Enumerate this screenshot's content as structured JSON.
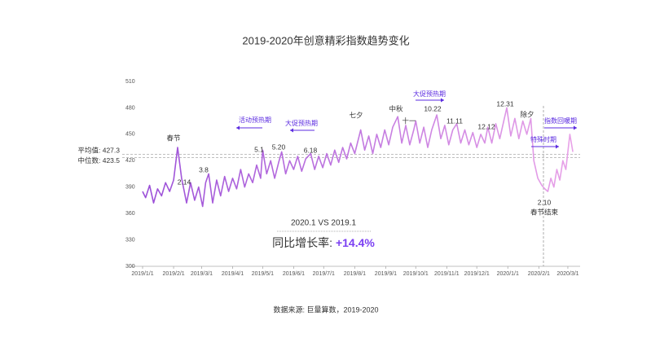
{
  "chart_data": {
    "type": "line",
    "title": "2019-2020年创意精彩指数趋势变化",
    "source": "数据来源: 巨量算数，2019-2020",
    "x": [
      "2019/1/1",
      "2019/1/4",
      "2019/1/8",
      "2019/1/12",
      "2019/1/16",
      "2019/1/20",
      "2019/1/24",
      "2019/1/28",
      "2019/2/1",
      "2019/2/5",
      "2019/2/9",
      "2019/2/14",
      "2019/2/18",
      "2019/2/22",
      "2019/2/26",
      "2019/3/2",
      "2019/3/5",
      "2019/3/8",
      "2019/3/12",
      "2019/3/16",
      "2019/3/20",
      "2019/3/24",
      "2019/3/28",
      "2019/4/1",
      "2019/4/5",
      "2019/4/9",
      "2019/4/13",
      "2019/4/17",
      "2019/4/21",
      "2019/4/25",
      "2019/4/29",
      "2019/5/1",
      "2019/5/5",
      "2019/5/9",
      "2019/5/13",
      "2019/5/17",
      "2019/5/20",
      "2019/5/24",
      "2019/5/28",
      "2019/6/1",
      "2019/6/5",
      "2019/6/9",
      "2019/6/13",
      "2019/6/18",
      "2019/6/22",
      "2019/6/26",
      "2019/6/30",
      "2019/7/4",
      "2019/7/8",
      "2019/7/12",
      "2019/7/16",
      "2019/7/20",
      "2019/7/24",
      "2019/7/28",
      "2019/8/1",
      "2019/8/7",
      "2019/8/11",
      "2019/8/15",
      "2019/8/19",
      "2019/8/23",
      "2019/8/27",
      "2019/8/31",
      "2019/9/4",
      "2019/9/8",
      "2019/9/13",
      "2019/9/17",
      "2019/9/21",
      "2019/9/25",
      "2019/9/29",
      "2019/10/1",
      "2019/10/5",
      "2019/10/9",
      "2019/10/13",
      "2019/10/17",
      "2019/10/22",
      "2019/10/26",
      "2019/10/30",
      "2019/11/3",
      "2019/11/7",
      "2019/11/11",
      "2019/11/15",
      "2019/11/19",
      "2019/11/23",
      "2019/11/27",
      "2019/12/1",
      "2019/12/5",
      "2019/12/9",
      "2019/12/12",
      "2019/12/16",
      "2019/12/20",
      "2019/12/24",
      "2019/12/28",
      "2019/12/31",
      "2020/1/4",
      "2020/1/8",
      "2020/1/12",
      "2020/1/16",
      "2020/1/20",
      "2020/1/24",
      "2020/1/27",
      "2020/1/31",
      "2020/2/4",
      "2020/2/7",
      "2020/2/10",
      "2020/2/13",
      "2020/2/16",
      "2020/2/19",
      "2020/2/22",
      "2020/2/25",
      "2020/2/28",
      "2020/3/3",
      "2020/3/6"
    ],
    "series": [
      {
        "name": "创意精彩指数",
        "color": [
          "#9b4fd8",
          "#e9a3e8"
        ],
        "values": [
          385,
          378,
          392,
          372,
          388,
          380,
          395,
          385,
          398,
          435,
          400,
          372,
          395,
          375,
          390,
          368,
          395,
          405,
          372,
          398,
          380,
          402,
          385,
          400,
          388,
          410,
          390,
          405,
          395,
          415,
          400,
          432,
          405,
          420,
          400,
          418,
          430,
          405,
          420,
          410,
          425,
          408,
          422,
          428,
          410,
          425,
          412,
          428,
          415,
          432,
          418,
          435,
          422,
          440,
          428,
          455,
          432,
          448,
          428,
          450,
          435,
          455,
          438,
          458,
          470,
          440,
          460,
          438,
          455,
          465,
          440,
          458,
          435,
          455,
          472,
          445,
          460,
          438,
          455,
          462,
          440,
          455,
          438,
          452,
          435,
          450,
          440,
          458,
          440,
          462,
          445,
          465,
          480,
          448,
          468,
          445,
          465,
          450,
          468,
          420,
          400,
          392,
          388,
          385,
          400,
          390,
          410,
          398,
          420,
          410,
          450,
          430
        ]
      }
    ],
    "xlim": [
      "2019/1/1",
      "2020/3/10"
    ],
    "xticks": [
      "2019/1/1",
      "2019/2/1",
      "2019/3/1",
      "2019/4/1",
      "2019/5/1",
      "2019/6/1",
      "2019/7/1",
      "2019/8/1",
      "2019/9/1",
      "2019/10/1",
      "2019/11/1",
      "2019/12/1",
      "2020/1/1",
      "2020/2/1",
      "2020/3/1"
    ],
    "ylim": [
      300,
      510
    ],
    "yticks": [
      300,
      330,
      360,
      390,
      420,
      450,
      480,
      510
    ],
    "grid": false,
    "reference_lines": [
      {
        "label": "平均值: 427.3",
        "value": 427.3
      },
      {
        "label": "中位数: 423.5",
        "value": 423.5
      }
    ],
    "annotations": [
      "春节",
      "2.14",
      "3.8",
      "活动预热期",
      "5.1",
      "5.20",
      "大促预热期",
      "6.18",
      "七夕",
      "中秋",
      "十一",
      "大促预热期",
      "10.22",
      "11.11",
      "12.12",
      "12.31",
      "除夕",
      "特殊时期",
      "指数回暖期",
      "2.10",
      "春节结束"
    ],
    "comparison": {
      "title": "2020.1 VS 2019.1",
      "label": "同比增长率: ",
      "value_label": "+14.4%"
    }
  }
}
